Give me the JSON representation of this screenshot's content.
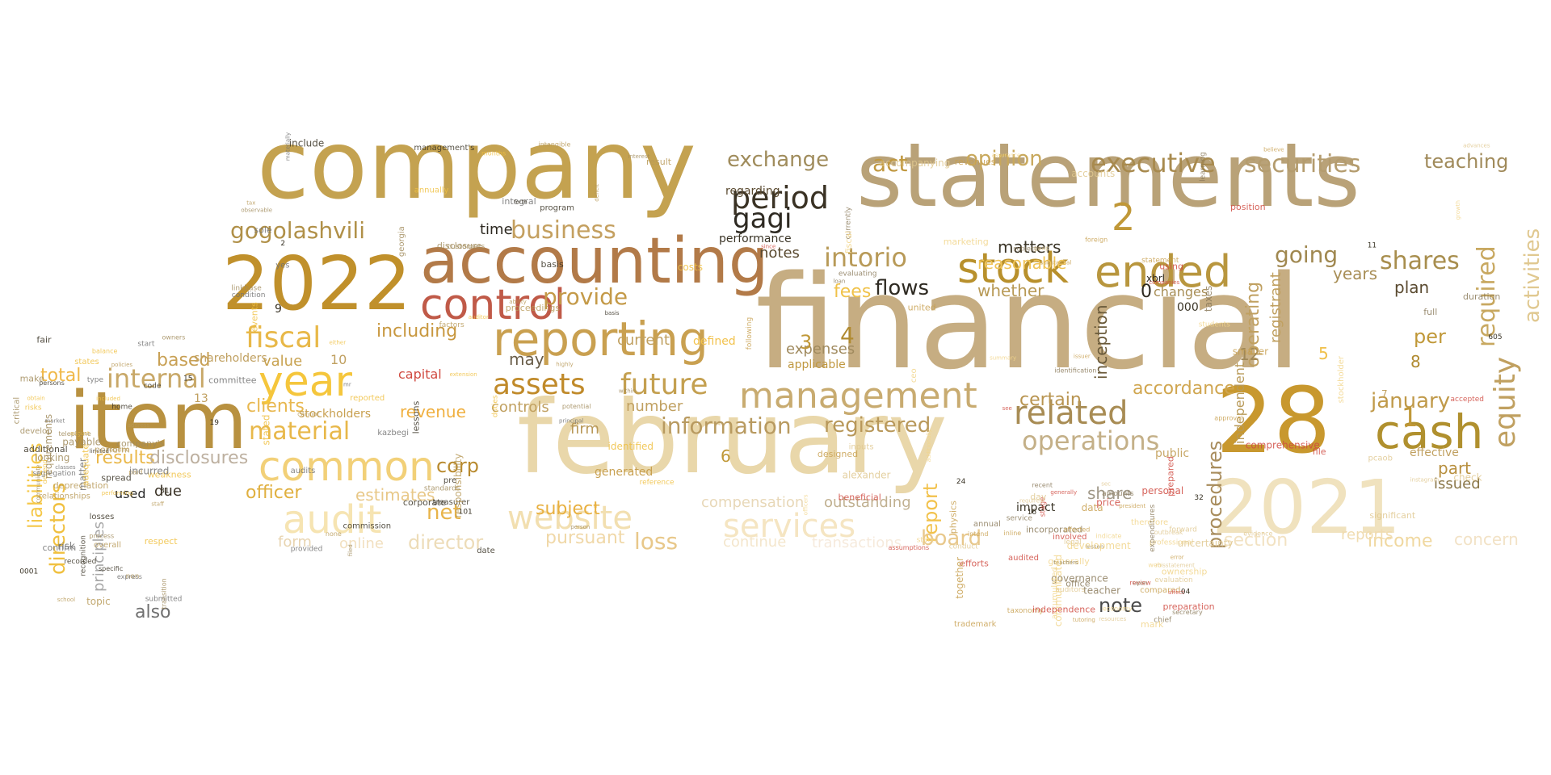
{
  "words": [
    {
      "text": "company",
      "color": "#c4a250"
    },
    {
      "text": "statements",
      "color": "#b9a278"
    },
    {
      "text": "financial",
      "color": "#c6ad82"
    },
    {
      "text": "february",
      "color": "#e9d7aa"
    },
    {
      "text": "2022",
      "color": "#c0902b"
    },
    {
      "text": "accounting",
      "color": "#b27a48"
    },
    {
      "text": "item",
      "color": "#b89140"
    },
    {
      "text": "28",
      "color": "#c8982e"
    },
    {
      "text": "2021",
      "color": "#f0e2be"
    },
    {
      "text": "control",
      "color": "#c05a48"
    },
    {
      "text": "reporting",
      "color": "#c9a050"
    },
    {
      "text": "year",
      "color": "#f5c63c"
    },
    {
      "text": "cash",
      "color": "#b0902e"
    },
    {
      "text": "stock",
      "color": "#b8902c"
    },
    {
      "text": "ended",
      "color": "#b8963e"
    },
    {
      "text": "management",
      "color": "#c8ab70"
    },
    {
      "text": "common",
      "color": "#f2d078"
    },
    {
      "text": "audit",
      "color": "#f6e4b2"
    },
    {
      "text": "website",
      "color": "#f2dfb0"
    },
    {
      "text": "services",
      "color": "#f5e5c2"
    },
    {
      "text": "assets",
      "color": "#c08a2a"
    },
    {
      "text": "future",
      "color": "#c4a050"
    },
    {
      "text": "related",
      "color": "#a88c54"
    },
    {
      "text": "operations",
      "color": "#c4b088"
    },
    {
      "text": "executive",
      "color": "#a88a4e"
    },
    {
      "text": "securities",
      "color": "#b49c6e"
    },
    {
      "text": "period",
      "color": "#3a3224"
    },
    {
      "text": "gagi",
      "color": "#2e2a22"
    },
    {
      "text": "intorio",
      "color": "#b89a58"
    },
    {
      "text": "business",
      "color": "#c4a060"
    },
    {
      "text": "gogolashvili",
      "color": "#b09048"
    },
    {
      "text": "exchange",
      "color": "#a08c5c"
    },
    {
      "text": "act",
      "color": "#c09840"
    },
    {
      "text": "opinion",
      "color": "#c8a85c"
    },
    {
      "text": "teaching",
      "color": "#a08a5a"
    },
    {
      "text": "equity",
      "color": "#c0a060"
    },
    {
      "text": "required",
      "color": "#c8a860"
    },
    {
      "text": "activities",
      "color": "#e0c890"
    },
    {
      "text": "shares",
      "color": "#a88e4e"
    },
    {
      "text": "going",
      "color": "#a08850"
    },
    {
      "text": "january",
      "color": "#c09a4a"
    },
    {
      "text": "fiscal",
      "color": "#e8b848"
    },
    {
      "text": "internal",
      "color": "#c8a868"
    },
    {
      "text": "material",
      "color": "#e8b84a"
    },
    {
      "text": "provide",
      "color": "#c49a48"
    },
    {
      "text": "information",
      "color": "#b89a60"
    },
    {
      "text": "directors",
      "color": "#f0c040"
    },
    {
      "text": "liabilities",
      "color": "#f5c84a"
    },
    {
      "text": "results",
      "color": "#eab84a"
    },
    {
      "text": "disclosures",
      "color": "#bdb0a0"
    },
    {
      "text": "officer",
      "color": "#e0b040"
    },
    {
      "text": "corp",
      "color": "#b88a2e"
    },
    {
      "text": "net",
      "color": "#e8b44a"
    },
    {
      "text": "loss",
      "color": "#e8c88a"
    },
    {
      "text": "director",
      "color": "#eddcb8"
    },
    {
      "text": "registered",
      "color": "#b8985a"
    },
    {
      "text": "report",
      "color": "#f2c24c"
    },
    {
      "text": "board",
      "color": "#e8c88c"
    },
    {
      "text": "procedures",
      "color": "#a88c5c"
    },
    {
      "text": "operating",
      "color": "#c0a060"
    },
    {
      "text": "inception",
      "color": "#6a5a3a"
    },
    {
      "text": "flows",
      "color": "#2e2a22"
    },
    {
      "text": "fees",
      "color": "#f0c24a"
    },
    {
      "text": "matters",
      "color": "#3a3426"
    },
    {
      "text": "whether",
      "color": "#b89a56"
    },
    {
      "text": "reasonable",
      "color": "#f0c458"
    },
    {
      "text": "certain",
      "color": "#b89450"
    },
    {
      "text": "accordance",
      "color": "#d0a650"
    },
    {
      "text": "years",
      "color": "#a88e56"
    },
    {
      "text": "plan",
      "color": "#5a4a30"
    },
    {
      "text": "per",
      "color": "#c09838"
    },
    {
      "text": "part",
      "color": "#b89040"
    },
    {
      "text": "issued",
      "color": "#8a7648"
    },
    {
      "text": "section",
      "color": "#f2e2c2"
    },
    {
      "text": "income",
      "color": "#f0d8a0"
    },
    {
      "text": "concern",
      "color": "#f2e2c6"
    },
    {
      "text": "reports",
      "color": "#f0dcb0"
    },
    {
      "text": "total",
      "color": "#f0b848"
    },
    {
      "text": "based",
      "color": "#c8a054"
    },
    {
      "text": "including",
      "color": "#c89840"
    },
    {
      "text": "value",
      "color": "#c8a250"
    },
    {
      "text": "clients",
      "color": "#e8b850"
    },
    {
      "text": "estimates",
      "color": "#e8c888"
    },
    {
      "text": "revenue",
      "color": "#f0b040"
    },
    {
      "text": "capital",
      "color": "#d04a40"
    },
    {
      "text": "subject",
      "color": "#e8b040"
    },
    {
      "text": "pursuant",
      "color": "#f0d8a8"
    },
    {
      "text": "form",
      "color": "#e8d4b0"
    },
    {
      "text": "online",
      "color": "#f2e0c0"
    },
    {
      "text": "continue",
      "color": "#f4e6cc"
    },
    {
      "text": "transactions",
      "color": "#f6eadc"
    },
    {
      "text": "compensation",
      "color": "#e8d8b8"
    },
    {
      "text": "outstanding",
      "color": "#c0b090"
    },
    {
      "text": "number",
      "color": "#c0a060"
    },
    {
      "text": "controls",
      "color": "#c0a060"
    },
    {
      "text": "firm",
      "color": "#b89858"
    },
    {
      "text": "time",
      "color": "#2e2a22"
    },
    {
      "text": "notes",
      "color": "#5a4a30"
    },
    {
      "text": "may",
      "color": "#6a5e4a"
    },
    {
      "text": "expenses",
      "color": "#a08a5e"
    },
    {
      "text": "applicable",
      "color": "#c09840"
    },
    {
      "text": "share",
      "color": "#a09888"
    },
    {
      "text": "note",
      "color": "#4a4a4a"
    },
    {
      "text": "also",
      "color": "#707070"
    },
    {
      "text": "due",
      "color": "#3a3226"
    },
    {
      "text": "used",
      "color": "#2a2a2a"
    },
    {
      "text": "principles",
      "color": "#a8a8a8"
    },
    {
      "text": "stockholders",
      "color": "#c8a050"
    },
    {
      "text": "shareholders",
      "color": "#c0a060"
    },
    {
      "text": "registrant",
      "color": "#c0a060"
    },
    {
      "text": "independent",
      "color": "#b89a58"
    },
    {
      "text": "public",
      "color": "#c8a868"
    },
    {
      "text": "changes",
      "color": "#a88e56"
    },
    {
      "text": "current",
      "color": "#c0a060"
    },
    {
      "text": "performance",
      "color": "#3a3426"
    },
    {
      "text": "regarding",
      "color": "#5a4a30"
    },
    {
      "text": "effective",
      "color": "#c0a060"
    },
    {
      "text": "generated",
      "color": "#c8a050"
    },
    {
      "text": "impact",
      "color": "#3a3426"
    },
    {
      "text": "defined",
      "color": "#f2c24c"
    },
    {
      "text": "xbrl",
      "color": "#2e2a22"
    },
    {
      "text": "0",
      "color": "#2e2a22"
    },
    {
      "text": "2",
      "color": "#c09838"
    },
    {
      "text": "4",
      "color": "#b08a30"
    },
    {
      "text": "3",
      "color": "#c09838"
    },
    {
      "text": "5",
      "color": "#f0c04a"
    },
    {
      "text": "8",
      "color": "#b08a30"
    },
    {
      "text": "12",
      "color": "#a08858"
    },
    {
      "text": "1",
      "color": "#c09838"
    },
    {
      "text": "000",
      "color": "#3a3426"
    },
    {
      "text": "9",
      "color": "#3a3426"
    },
    {
      "text": "10",
      "color": "#c0a060"
    },
    {
      "text": "13",
      "color": "#c0a060"
    },
    {
      "text": "6",
      "color": "#c09838"
    },
    {
      "text": "7",
      "color": "#c0a060"
    }
  ],
  "small_words": [
    "extension",
    "issuer",
    "require",
    "amounts",
    "program",
    "accompanying",
    "looking",
    "generally",
    "provided",
    "companies",
    "august",
    "taxonomy",
    "proceedings",
    "currently",
    "additional",
    "forward",
    "standards",
    "marketing",
    "risk",
    "preparation",
    "months",
    "united",
    "school",
    "lesson",
    "treasurer",
    "alexander",
    "make",
    "economy",
    "materially",
    "personal",
    "balance",
    "intend",
    "deficit",
    "learning",
    "limited",
    "auditors",
    "potential",
    "officers",
    "market",
    "involved",
    "auditor",
    "smaller",
    "topic",
    "office",
    "date",
    "accounts",
    "company's",
    "development",
    "condition",
    "position",
    "depend",
    "error",
    "cannot",
    "annual",
    "code",
    "misstatement",
    "customers",
    "assurance",
    "matter",
    "stage",
    "stated",
    "statement",
    "paid",
    "chief",
    "basis",
    "inputs",
    "telephone",
    "ownership",
    "mr",
    "accepted",
    "performing",
    "compared",
    "ability",
    "incorporated",
    "recognition",
    "outbreak",
    "linkbase",
    "stockholder",
    "type",
    "audited",
    "duties",
    "following",
    "policies",
    "governance",
    "include",
    "pcaob",
    "critical",
    "indicate",
    "integral",
    "since",
    "risks",
    "tutoring",
    "tax",
    "loan",
    "recorded",
    "evaluation",
    "disclosure",
    "students",
    "segregation",
    "review",
    "events",
    "substantial",
    "address",
    "teachers",
    "lessons",
    "check",
    "payable",
    "professional",
    "audits",
    "see",
    "states",
    "trademark",
    "none",
    "taxes",
    "fair",
    "sec",
    "filed",
    "ceo",
    "classes",
    "efforts",
    "costs",
    "believe",
    "overall",
    "secretary",
    "basis",
    "gaap",
    "owners",
    "mark",
    "kazbegi",
    "using",
    "respect",
    "together",
    "factors",
    "subjects",
    "persons",
    "day",
    "observable",
    "summary",
    "submitted",
    "price",
    "either",
    "approval",
    "non",
    "teacher",
    "corporate",
    "advances",
    "transition",
    "therefore",
    "sole",
    "beneficial",
    "adequate",
    "president",
    "intangible",
    "evaluating",
    "spread",
    "requires",
    "georgia",
    "state",
    "express",
    "prepared",
    "annually",
    "affected",
    "perform",
    "upon",
    "commission",
    "evidence",
    "develop",
    "web",
    "yes",
    "file",
    "weakness",
    "data",
    "highly",
    "full",
    "home",
    "legal",
    "person",
    "growth",
    "start",
    "affect",
    "reported",
    "revenues",
    "depreciation",
    "service",
    "forth",
    "conduct",
    "process",
    "communicated",
    "principal",
    "comprehensive",
    "included",
    "inline",
    "responsibility",
    "identification",
    "losses",
    "resources",
    "within",
    "fiscal",
    "incurred",
    "generally",
    "reference",
    "foreign",
    "staff",
    "recent",
    "pre",
    "significant",
    "requirements",
    "accumulated",
    "committee",
    "assumptions",
    "obtain",
    "physics",
    "result",
    "duration",
    "specific",
    "uncertainty",
    "interest",
    "additionally",
    "confirm",
    "independence",
    "identified",
    "designed",
    "relationships",
    "expenditures",
    "management's",
    "instagram",
    "communicate"
  ],
  "numbers_small": [
    "11",
    "15",
    "16",
    "19",
    "24",
    "31",
    "32",
    "101",
    "605",
    "0001",
    "04",
    "2"
  ]
}
